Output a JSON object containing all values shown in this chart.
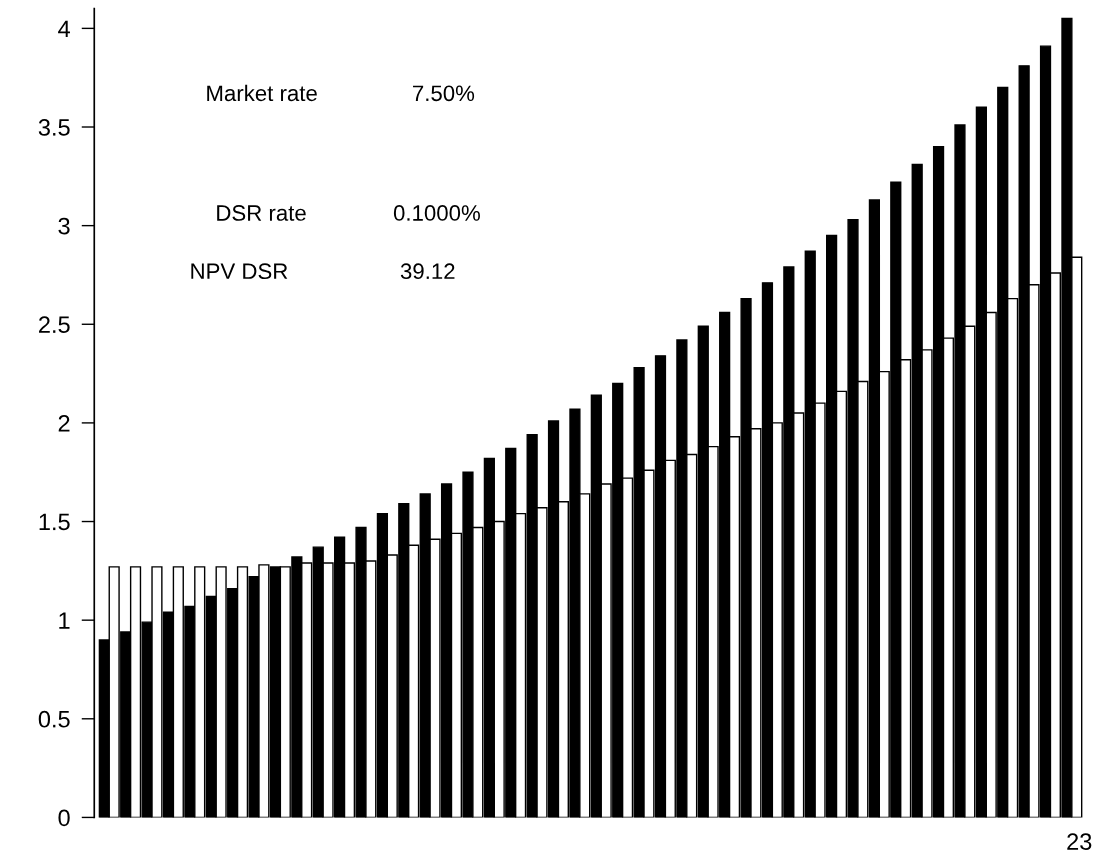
{
  "chart_data": {
    "type": "bar",
    "categories": [
      null,
      null,
      null,
      null,
      null,
      null,
      null,
      null,
      null,
      null,
      null,
      null,
      null,
      null,
      null,
      null,
      null,
      null,
      null,
      null,
      null,
      null,
      null,
      null,
      null,
      null,
      null,
      null,
      null,
      null,
      null,
      null,
      null,
      null,
      null,
      null,
      null,
      null,
      null,
      null,
      null,
      null,
      null,
      null,
      null,
      null
    ],
    "series": [
      {
        "color": "#000000",
        "values": [
          0.9,
          0.94,
          0.99,
          1.04,
          1.07,
          1.12,
          1.16,
          1.22,
          1.27,
          1.32,
          1.37,
          1.42,
          1.47,
          1.54,
          1.59,
          1.64,
          1.69,
          1.75,
          1.82,
          1.87,
          1.94,
          2.01,
          2.07,
          2.14,
          2.2,
          2.28,
          2.34,
          2.42,
          2.49,
          2.56,
          2.63,
          2.71,
          2.79,
          2.87,
          2.95,
          3.03,
          3.13,
          3.22,
          3.31,
          3.4,
          3.51,
          3.6,
          3.7,
          3.81,
          3.91,
          4.05
        ]
      },
      {
        "color": "#ffffff",
        "values": [
          1.27,
          1.27,
          1.27,
          1.27,
          1.27,
          1.27,
          1.27,
          1.28,
          1.27,
          1.29,
          1.29,
          1.29,
          1.3,
          1.33,
          1.38,
          1.41,
          1.44,
          1.47,
          1.5,
          1.54,
          1.57,
          1.6,
          1.64,
          1.69,
          1.72,
          1.76,
          1.81,
          1.84,
          1.88,
          1.93,
          1.97,
          2.0,
          2.05,
          2.1,
          2.16,
          2.21,
          2.26,
          2.32,
          2.37,
          2.43,
          2.49,
          2.56,
          2.63,
          2.7,
          2.76,
          2.84
        ]
      }
    ],
    "ylim": [
      0,
      4.1
    ],
    "yticks": [
      0,
      {
        "value": 0.5,
        "label": "0.5"
      },
      1,
      {
        "value": 1.5,
        "label": "1.5"
      },
      2,
      {
        "value": 2.5,
        "label": "2.5"
      },
      3,
      {
        "value": 3.5,
        "label": "3.5"
      },
      4
    ],
    "tick_labels": "y",
    "grid": false,
    "annotations": [
      "Market rate",
      "7.50%",
      "DSR rate",
      "0.1000%",
      "NPV DSR",
      "39.12",
      "23"
    ]
  }
}
